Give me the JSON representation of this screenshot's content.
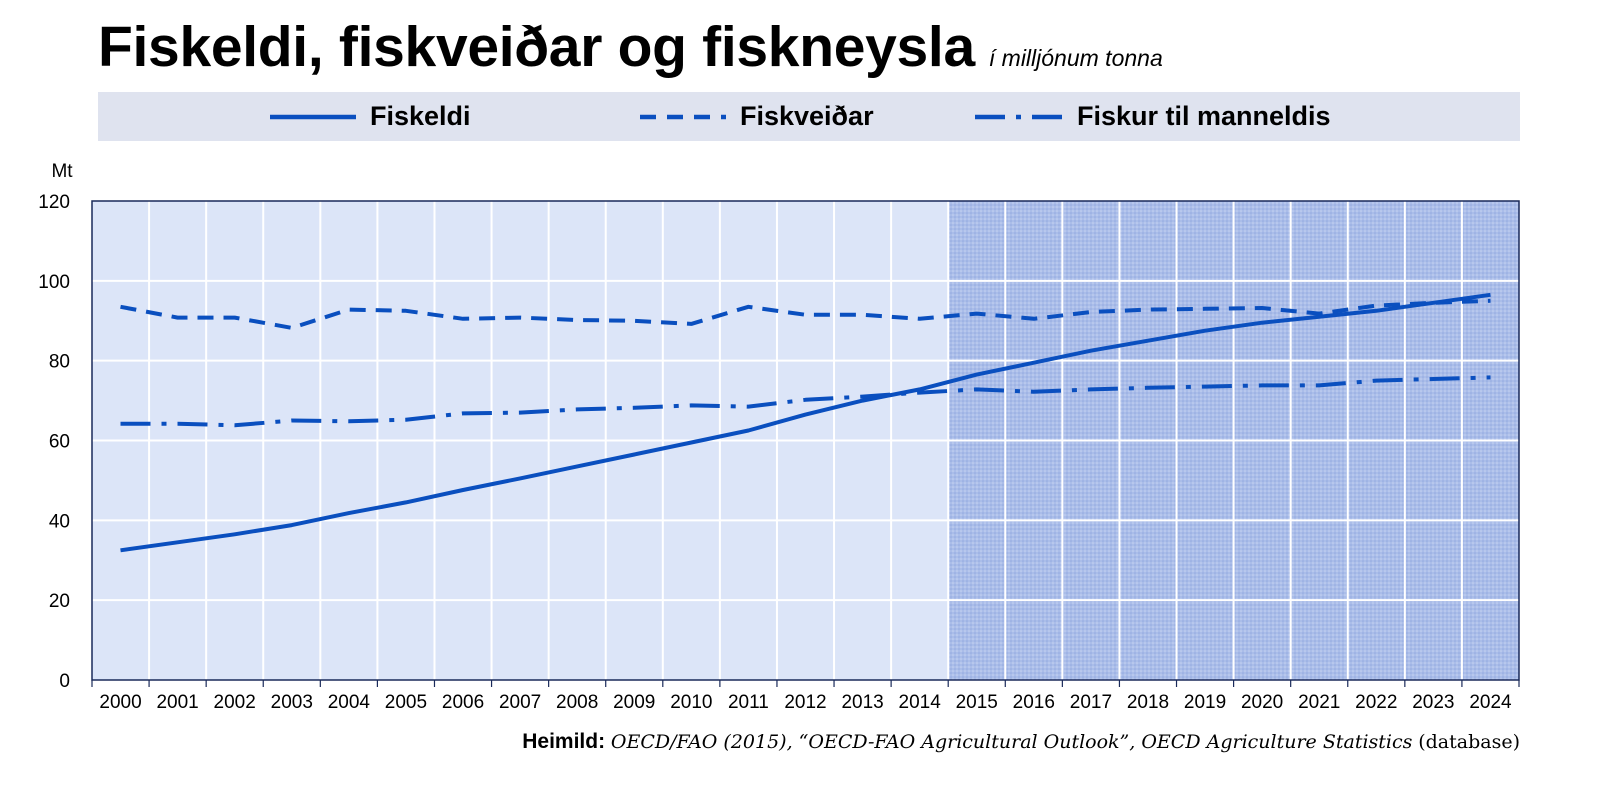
{
  "title": "Fiskeldi, fiskveiðar og fiskneysla",
  "subtitle": "í milljónum tonna",
  "source": {
    "label": "Heimild:",
    "text": "OECD/FAO (2015), “OECD-FAO Agricultural Outlook”, OECD Agriculture Statistics",
    "suffix": "(database)"
  },
  "colors": {
    "line": "#0a4fbf",
    "historical_bg": "#dce5f8",
    "projection_bg": "#aabde9",
    "legend_bg": "#dfe3ef",
    "grid": "#ffffff",
    "frame": "#1a2a5a"
  },
  "chart_data": {
    "type": "line",
    "title": "Fiskeldi, fiskveiðar og fiskneysla",
    "subtitle": "í milljónum tonna",
    "ylabel": "Mt",
    "xlabel": "",
    "ylim": [
      0,
      120
    ],
    "yticks": [
      0,
      20,
      40,
      60,
      80,
      100,
      120
    ],
    "grid": true,
    "legend_position": "top",
    "projection_start": 2015,
    "x": [
      2000,
      2001,
      2002,
      2003,
      2004,
      2005,
      2006,
      2007,
      2008,
      2009,
      2010,
      2011,
      2012,
      2013,
      2014,
      2015,
      2016,
      2017,
      2018,
      2019,
      2020,
      2021,
      2022,
      2023,
      2024
    ],
    "series": [
      {
        "name": "Fiskeldi",
        "style": "solid",
        "values": [
          32.5,
          34.5,
          36.5,
          38.8,
          41.8,
          44.5,
          47.6,
          50.5,
          53.5,
          56.5,
          59.5,
          62.5,
          66.5,
          70.0,
          72.8,
          76.5,
          79.5,
          82.5,
          85.0,
          87.5,
          89.5,
          91.0,
          92.5,
          94.5,
          96.5
        ]
      },
      {
        "name": "Fiskveiðar",
        "style": "dashed",
        "values": [
          93.5,
          90.8,
          90.8,
          88.2,
          92.8,
          92.5,
          90.5,
          90.8,
          90.2,
          90.0,
          89.2,
          93.5,
          91.5,
          91.5,
          90.5,
          91.8,
          90.5,
          92.2,
          92.8,
          93.0,
          93.2,
          91.8,
          93.8,
          94.5,
          95.0
        ]
      },
      {
        "name": "Fiskur til manneldis",
        "style": "dashdot",
        "values": [
          64.2,
          64.2,
          63.8,
          65.0,
          64.8,
          65.2,
          66.8,
          67.0,
          67.8,
          68.2,
          68.8,
          68.5,
          70.2,
          71.0,
          72.0,
          72.8,
          72.2,
          72.8,
          73.2,
          73.5,
          73.8,
          73.8,
          75.0,
          75.4,
          75.8
        ]
      }
    ]
  }
}
